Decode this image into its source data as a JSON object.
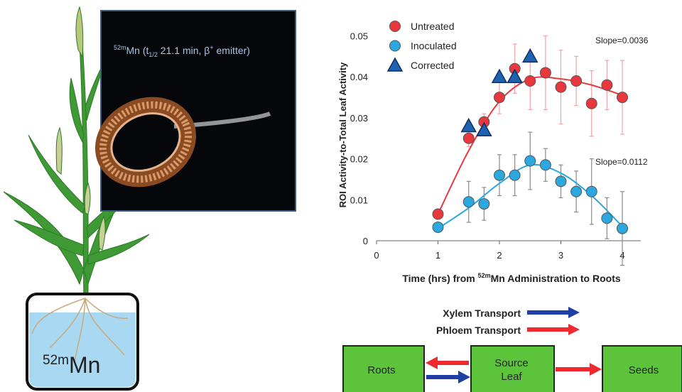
{
  "chart_data": {
    "type": "scatter",
    "ylabel": "ROI Activity-to-Total Leaf Activity",
    "xlabel": [
      "Time (hrs) from ",
      "52m",
      "Mn Administration to Roots"
    ],
    "xlim": [
      0,
      4.3
    ],
    "ylim": [
      0,
      0.052
    ],
    "xticks": [
      0,
      1,
      2,
      3,
      4
    ],
    "yticks": [
      0,
      0.01,
      0.02,
      0.03,
      0.04,
      0.05
    ],
    "annotations": [
      "Slope=0.0036",
      "Slope=0.0112"
    ],
    "series": [
      {
        "name": "Untreated",
        "color": "#e8383d",
        "marker": "circle",
        "error_color": "#f2a2a2",
        "x": [
          1,
          1.5,
          1.75,
          2,
          2.25,
          2.5,
          2.75,
          3,
          3.25,
          3.5,
          3.75,
          4
        ],
        "values": [
          0.0065,
          0.025,
          0.029,
          0.035,
          0.042,
          0.039,
          0.041,
          0.0375,
          0.039,
          0.0335,
          0.038,
          0.035
        ],
        "errors": [
          0.001,
          0.002,
          0.002,
          0.004,
          0.006,
          0.007,
          0.009,
          0.009,
          0.006,
          0.008,
          0.006,
          0.009
        ],
        "fit_x": [
          1,
          1.5,
          2,
          2.5,
          3,
          3.5,
          4
        ],
        "fit_values": [
          0.0065,
          0.022,
          0.034,
          0.0395,
          0.0395,
          0.038,
          0.0355
        ]
      },
      {
        "name": "Inoculated",
        "color": "#2aa8df",
        "marker": "circle",
        "error_color": "#8a8a8a",
        "x": [
          1,
          1.5,
          1.75,
          2,
          2.25,
          2.5,
          2.75,
          3,
          3.25,
          3.5,
          3.75,
          4
        ],
        "values": [
          0.0033,
          0.0095,
          0.009,
          0.016,
          0.016,
          0.0195,
          0.0185,
          0.0145,
          0.012,
          0.012,
          0.0055,
          0.003
        ],
        "errors": [
          0.001,
          0.005,
          0.004,
          0.005,
          0.005,
          0.007,
          0.004,
          0.004,
          0.005,
          0.008,
          0.005,
          0.009
        ],
        "fit_x": [
          1,
          1.5,
          2,
          2.5,
          3,
          3.5,
          4
        ],
        "fit_values": [
          0.003,
          0.008,
          0.014,
          0.0185,
          0.0165,
          0.011,
          0.0035
        ]
      },
      {
        "name": "Corrected",
        "color": "#1f63b0",
        "marker": "triangle",
        "x": [
          1.5,
          1.75,
          2,
          2.25,
          2.5
        ],
        "values": [
          0.028,
          0.027,
          0.04,
          0.04,
          0.045
        ]
      }
    ]
  },
  "illustration": {
    "isotope_label": [
      "52m",
      "Mn (t",
      "1/2",
      " 21.1 min, β",
      "+",
      " emitter)"
    ],
    "pot_label": [
      "52m",
      "Mn"
    ]
  },
  "diagram": {
    "legend": [
      "Xylem Transport",
      "Phloem Transport"
    ],
    "nodes": [
      "Roots",
      "Source\nLeaf",
      "Seeds"
    ]
  }
}
